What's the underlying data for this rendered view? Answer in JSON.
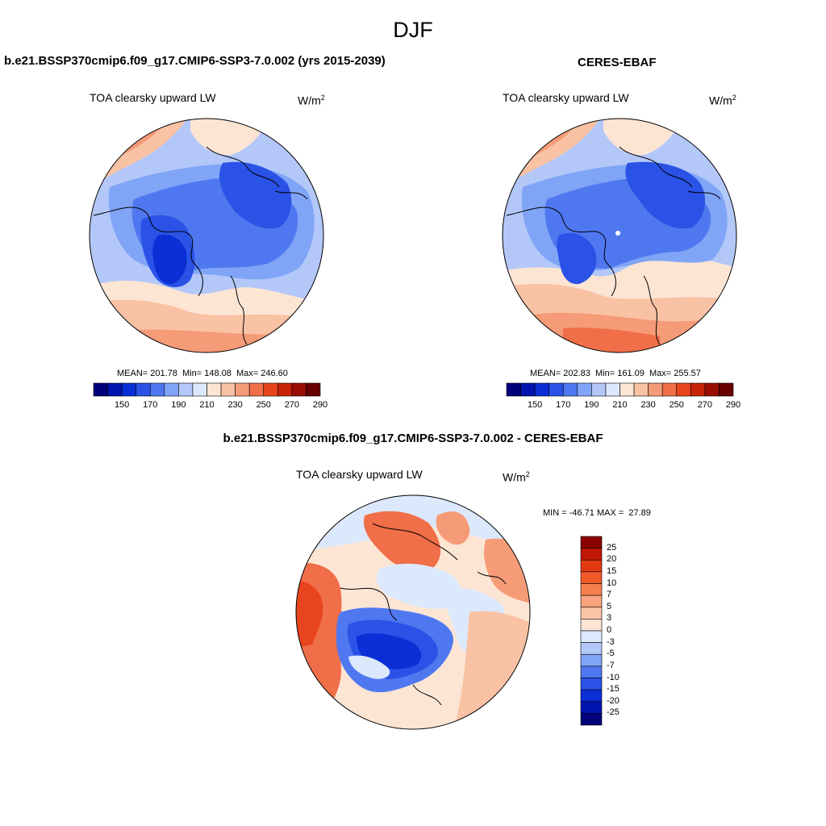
{
  "figure": {
    "title": "DJF"
  },
  "units_base": "W/m",
  "units_exp": "2",
  "panel_left": {
    "case": "b.e21.BSSP370cmip6.f09_g17.CMIP6-SSP3-7.0.002 (yrs 2015-2039)",
    "variable": "TOA clearsky upward LW",
    "stats": "MEAN= 201.78  Min= 148.08  Max= 246.60"
  },
  "panel_right": {
    "case": "CERES-EBAF",
    "variable": "TOA clearsky upward LW",
    "stats": "MEAN= 202.83  Min= 161.09  Max= 255.57"
  },
  "panel_diff": {
    "case": "b.e21.BSSP370cmip6.f09_g17.CMIP6-SSP3-7.0.002 - CERES-EBAF",
    "variable": "TOA clearsky upward LW",
    "stats": "MIN = -46.71 MAX =  27.89"
  },
  "colorbar_abs": {
    "labels": [
      "150",
      "170",
      "190",
      "210",
      "230",
      "250",
      "270",
      "290"
    ],
    "colors": [
      "#00007a",
      "#0015b0",
      "#0a2fd6",
      "#2a52e6",
      "#4f78f0",
      "#80a4f6",
      "#b3c8f9",
      "#dce8fc",
      "#fde5d4",
      "#f9c2a4",
      "#f59b77",
      "#f06e48",
      "#e8441e",
      "#c72409",
      "#9a0d02",
      "#680000"
    ]
  },
  "colorbar_diff": {
    "labels": [
      "25",
      "20",
      "15",
      "10",
      "7",
      "5",
      "3",
      "0",
      "-3",
      "-5",
      "-7",
      "-10",
      "-15",
      "-20",
      "-25"
    ],
    "colors": [
      "#8b0000",
      "#c01806",
      "#e23a12",
      "#f25a2a",
      "#f77f4e",
      "#f9a47e",
      "#fbc4a6",
      "#fde5d4",
      "#dce8fc",
      "#b3c8f9",
      "#80a4f6",
      "#4f78f0",
      "#2a52e6",
      "#0a2fd6",
      "#0015b0",
      "#00007a"
    ]
  }
}
